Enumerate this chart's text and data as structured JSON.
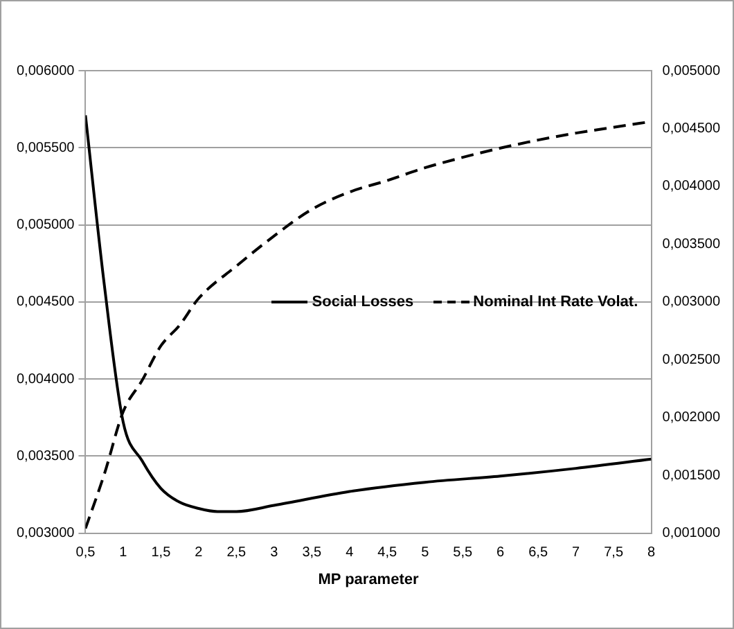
{
  "chart_data": {
    "type": "line",
    "xlabel": "MP parameter",
    "legend": "right",
    "grid": "y",
    "marker": "none",
    "xlim": [
      0.5,
      8
    ],
    "xticks": [
      {
        "value": 0.5,
        "label": "0,5"
      },
      1,
      {
        "value": 1.5,
        "label": "1,5"
      },
      2,
      {
        "value": 2.5,
        "label": "2,5"
      },
      3,
      {
        "value": 3.5,
        "label": "3,5"
      },
      4,
      {
        "value": 4.5,
        "label": "4,5"
      },
      5,
      {
        "value": 5.5,
        "label": "5,5"
      },
      6,
      {
        "value": 6.5,
        "label": "6,5"
      },
      7,
      {
        "value": 7.5,
        "label": "7,5"
      },
      8
    ],
    "ylim": [
      0.003,
      0.006
    ],
    "yticks": [
      {
        "value": 0.003,
        "label": "0,003000"
      },
      {
        "value": 0.0035,
        "label": "0,003500"
      },
      {
        "value": 0.004,
        "label": "0,004000"
      },
      {
        "value": 0.0045,
        "label": "0,004500"
      },
      {
        "value": 0.005,
        "label": "0,005000"
      },
      {
        "value": 0.0055,
        "label": "0,005500"
      },
      {
        "value": 0.006,
        "label": "0,006000"
      }
    ],
    "y2lim": [
      0.001,
      0.005
    ],
    "y2ticks": [
      {
        "value": 0.001,
        "label": "0,001000"
      },
      {
        "value": 0.0015,
        "label": "0,001500"
      },
      {
        "value": 0.002,
        "label": "0,002000"
      },
      {
        "value": 0.0025,
        "label": "0,002500"
      },
      {
        "value": 0.003,
        "label": "0,003000"
      },
      {
        "value": 0.0035,
        "label": "0,003500"
      },
      {
        "value": 0.004,
        "label": "0,004000"
      },
      {
        "value": 0.0045,
        "label": "0,004500"
      },
      {
        "value": 0.005,
        "label": "0,005000"
      }
    ],
    "series": [
      {
        "name": "Social Losses",
        "color": "#000000",
        "line_style": "solid",
        "x": [
          0.5,
          0.75,
          1,
          1.25,
          1.5,
          1.75,
          2,
          2.25,
          2.5,
          3,
          4,
          5,
          6,
          7,
          8
        ],
        "values": [
          0.00571,
          0.00461,
          0.00372,
          0.00347,
          0.00329,
          0.0032,
          0.00316,
          0.00314,
          0.00314,
          0.00318,
          0.00327,
          0.00333,
          0.00337,
          0.00342,
          0.00348
        ]
      },
      {
        "name": "Nominal Int Rate Volat.",
        "color": "#000000",
        "line_style": "dashed",
        "axis": "y2",
        "x": [
          0.5,
          0.75,
          1,
          1.25,
          1.5,
          1.75,
          2,
          2.5,
          3,
          3.5,
          4,
          4.5,
          5,
          5.5,
          6,
          6.5,
          7,
          7.5,
          8
        ],
        "values": [
          0.00104,
          0.00151,
          0.00205,
          0.00232,
          0.00262,
          0.0028,
          0.00303,
          0.00331,
          0.00357,
          0.0038,
          0.00395,
          0.00405,
          0.00416,
          0.00425,
          0.00433,
          0.0044,
          0.00446,
          0.00451,
          0.00456
        ]
      }
    ]
  }
}
